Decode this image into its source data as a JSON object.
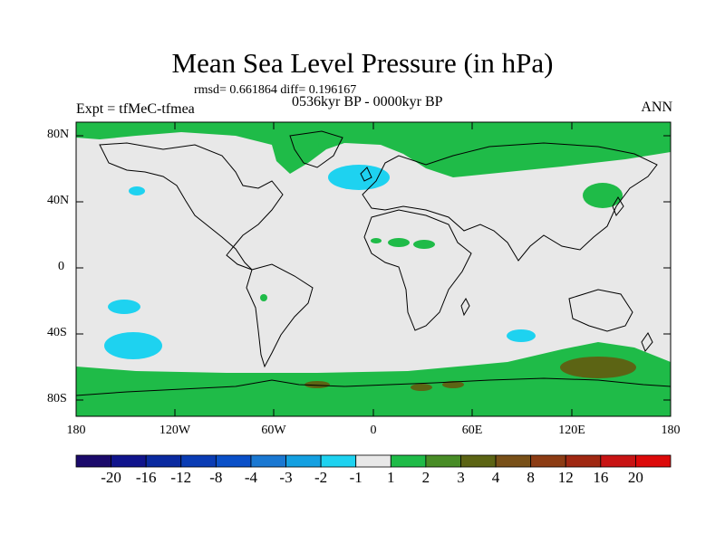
{
  "title": "Mean Sea Level Pressure (in hPa)",
  "stats": "rmsd= 0.661864 diff= 0.196167",
  "experiment": "Expt = tfMeC-tfmea",
  "period": "0536kyr BP - 0000kyr BP",
  "season": "ANN",
  "lat_labels": [
    "80N",
    "40N",
    "0",
    "40S",
    "80S"
  ],
  "lon_labels": [
    "180",
    "120W",
    "60W",
    "0",
    "60E",
    "120E",
    "180"
  ],
  "colorbar": {
    "labels": [
      "-20",
      "-16",
      "-12",
      "-8",
      "-4",
      "-3",
      "-2",
      "-1",
      "1",
      "2",
      "3",
      "4",
      "8",
      "12",
      "16",
      "20"
    ],
    "colors": [
      "#1b0a6b",
      "#10148c",
      "#0a2aa0",
      "#0a3cb4",
      "#0a50c8",
      "#1a78d2",
      "#14a0e1",
      "#1ed2f0",
      "#e8e8e8",
      "#1fbb48",
      "#488c26",
      "#5c6414",
      "#785018",
      "#8c3c14",
      "#a02812",
      "#c81414",
      "#dc0a0a"
    ]
  },
  "colors": {
    "neutral": "#e8e8e8",
    "positive_1_2": "#1fbb48",
    "positive_3_4": "#5c6414",
    "negative_1_2": "#1ed2f0"
  }
}
